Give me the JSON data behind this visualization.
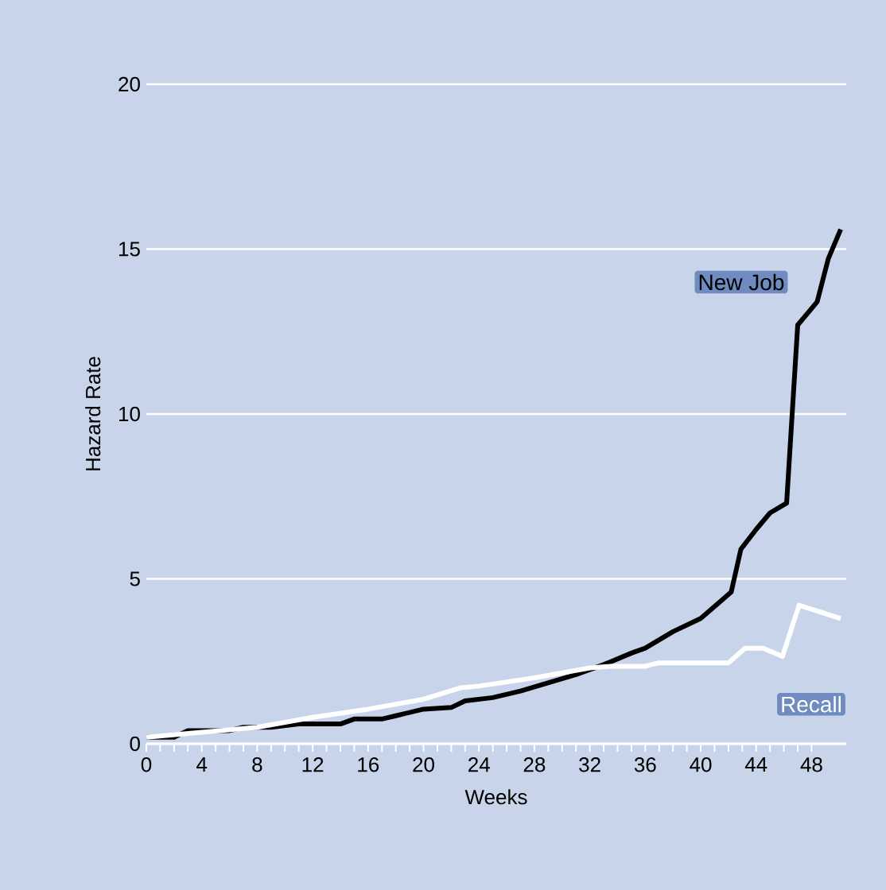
{
  "chart_data": {
    "type": "line",
    "xlabel": "Weeks",
    "ylabel": "Hazard Rate",
    "xlim": [
      0,
      50.5
    ],
    "ylim": [
      0,
      20
    ],
    "xticks": [
      0,
      4,
      8,
      12,
      16,
      20,
      24,
      28,
      32,
      36,
      40,
      44,
      48
    ],
    "yticks": [
      0,
      5,
      10,
      15,
      20
    ],
    "grid": "y",
    "legend": false,
    "marker": "none",
    "line_style": "solid",
    "series": [
      {
        "name": "New Job",
        "color": "#000000",
        "x": [
          0,
          2,
          3,
          6,
          7,
          9,
          11,
          14,
          15,
          17,
          18,
          20,
          22,
          23,
          25,
          27,
          29,
          31,
          33,
          35,
          36,
          38,
          40,
          42.2,
          42.9,
          44,
          45,
          46.2,
          47,
          48.4,
          49.2,
          50.1
        ],
        "values": [
          0.2,
          0.2,
          0.4,
          0.4,
          0.5,
          0.5,
          0.6,
          0.6,
          0.75,
          0.75,
          0.85,
          1.05,
          1.1,
          1.3,
          1.4,
          1.6,
          1.85,
          2.1,
          2.4,
          2.75,
          2.9,
          3.4,
          3.8,
          4.6,
          5.9,
          6.5,
          7.0,
          7.3,
          12.7,
          13.4,
          14.7,
          15.6
        ]
      },
      {
        "name": "Recall",
        "color": "#ffffff",
        "x": [
          0,
          4,
          8,
          12,
          16,
          20,
          22.7,
          24,
          28,
          32,
          33.5,
          36,
          36.9,
          42,
          43.2,
          44.5,
          45.9,
          47.1,
          50.1
        ],
        "values": [
          0.2,
          0.35,
          0.5,
          0.8,
          1.05,
          1.35,
          1.7,
          1.75,
          2.0,
          2.3,
          2.35,
          2.35,
          2.45,
          2.45,
          2.9,
          2.9,
          2.65,
          4.2,
          3.8
        ]
      }
    ]
  }
}
